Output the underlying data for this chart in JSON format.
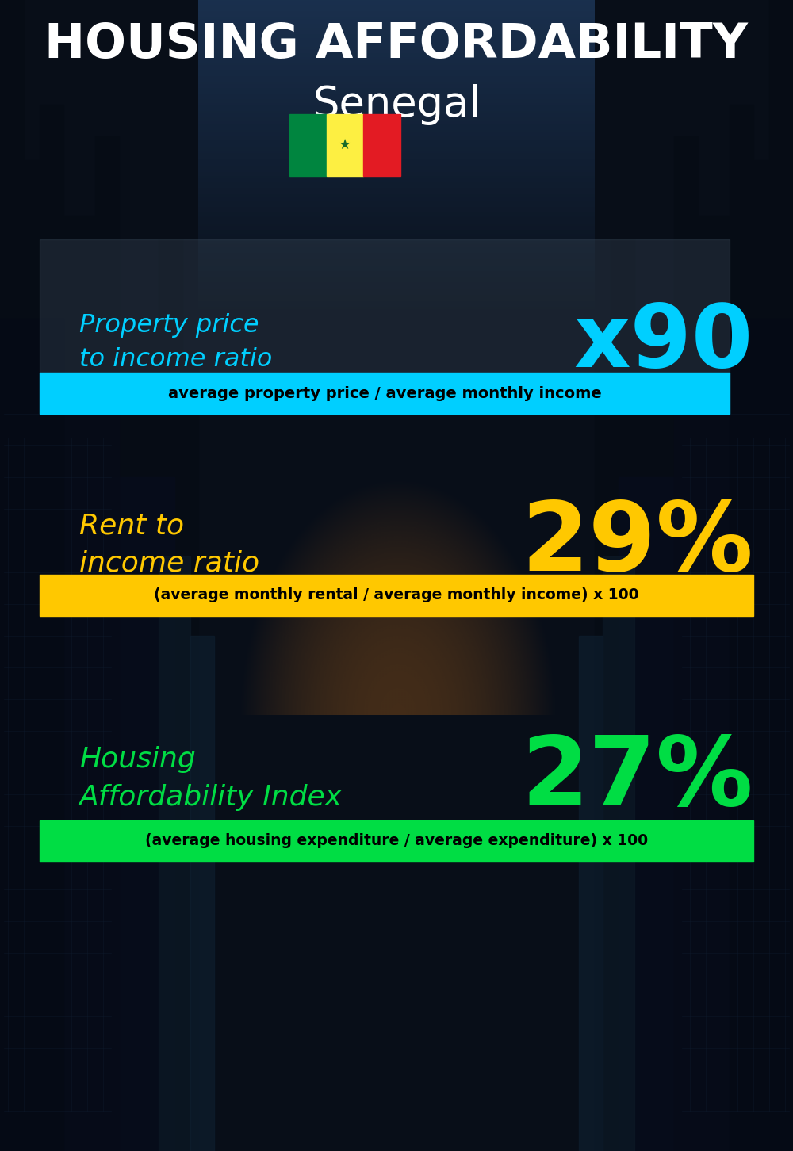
{
  "title_line1": "HOUSING AFFORDABILITY",
  "title_line2": "Senegal",
  "bg_color": "#080e18",
  "section1_label": "Property price\nto income ratio",
  "section1_value": "x90",
  "section1_label_color": "#00cfff",
  "section1_value_color": "#00cfff",
  "section1_banner": "average property price / average monthly income",
  "section1_banner_bg": "#00cfff",
  "section2_label": "Rent to\nincome ratio",
  "section2_value": "29%",
  "section2_label_color": "#ffc800",
  "section2_value_color": "#ffc800",
  "section2_banner": "(average monthly rental / average monthly income) x 100",
  "section2_banner_bg": "#ffc800",
  "section3_label": "Housing\nAffordability Index",
  "section3_value": "27%",
  "section3_label_color": "#00dd44",
  "section3_value_color": "#00dd44",
  "section3_banner": "(average housing expenditure / average expenditure) x 100",
  "section3_banner_bg": "#00dd44",
  "flag_colors": [
    "#00853F",
    "#FDEF42",
    "#E31B23"
  ],
  "star_color": "#1a6b2a"
}
